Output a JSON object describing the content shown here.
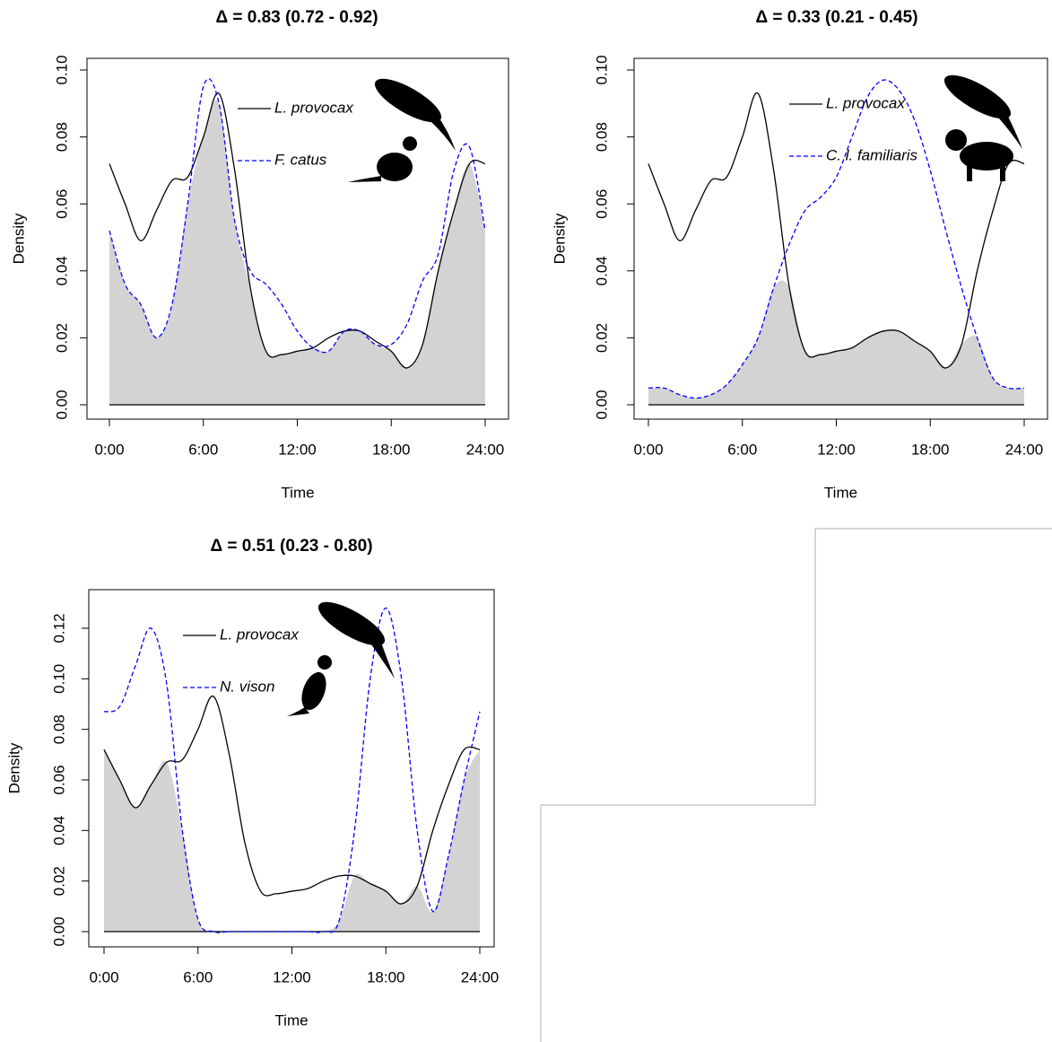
{
  "chart_data": [
    {
      "type": "line",
      "title": "Δ = 0.83 (0.72 - 0.92)",
      "x_label": "Time",
      "y_label": "Density",
      "x": [
        0,
        1,
        2,
        3,
        4,
        5,
        6,
        7,
        8,
        9,
        10,
        11,
        12,
        13,
        14,
        15,
        16,
        17,
        18,
        19,
        20,
        21,
        22,
        23,
        24
      ],
      "xlim": [
        0,
        24
      ],
      "xticks": [
        {
          "value": 0,
          "label": "0:00"
        },
        {
          "value": 6,
          "label": "6:00"
        },
        {
          "value": 12,
          "label": "12:00"
        },
        {
          "value": 18,
          "label": "18:00"
        },
        {
          "value": 24,
          "label": "24:00"
        }
      ],
      "ylim": [
        0,
        0.1
      ],
      "yticks": [
        {
          "value": 0,
          "label": "0.00"
        },
        0.02,
        0.04,
        0.06,
        0.08,
        {
          "value": 0.1,
          "label": "0.10"
        }
      ],
      "overlap_fill": "#d3d3d3",
      "series": [
        {
          "name": "L. provocax",
          "color": "#000000",
          "line_style": "solid",
          "values": [
            0.072,
            0.06,
            0.049,
            0.058,
            0.067,
            0.068,
            0.08,
            0.093,
            0.07,
            0.035,
            0.016,
            0.015,
            0.016,
            0.017,
            0.02,
            0.022,
            0.022,
            0.019,
            0.016,
            0.011,
            0.018,
            0.04,
            0.058,
            0.072,
            0.072
          ]
        },
        {
          "name": "F. catus",
          "color": "#0000ff",
          "line_style": "dashed",
          "values": [
            0.052,
            0.036,
            0.03,
            0.02,
            0.03,
            0.06,
            0.095,
            0.09,
            0.055,
            0.04,
            0.036,
            0.03,
            0.022,
            0.017,
            0.016,
            0.022,
            0.022,
            0.018,
            0.018,
            0.024,
            0.037,
            0.045,
            0.07,
            0.077,
            0.052
          ]
        }
      ]
    },
    {
      "type": "line",
      "title": "Δ = 0.33 (0.21 - 0.45)",
      "x_label": "Time",
      "y_label": "Density",
      "x": [
        0,
        1,
        2,
        3,
        4,
        5,
        6,
        7,
        8,
        9,
        10,
        11,
        12,
        13,
        14,
        15,
        16,
        17,
        18,
        19,
        20,
        21,
        22,
        23,
        24
      ],
      "xlim": [
        0,
        24
      ],
      "xticks": [
        {
          "value": 0,
          "label": "0:00"
        },
        {
          "value": 6,
          "label": "6:00"
        },
        {
          "value": 12,
          "label": "12:00"
        },
        {
          "value": 18,
          "label": "18:00"
        },
        {
          "value": 24,
          "label": "24:00"
        }
      ],
      "ylim": [
        0,
        0.1
      ],
      "yticks": [
        {
          "value": 0,
          "label": "0.00"
        },
        0.02,
        0.04,
        0.06,
        0.08,
        {
          "value": 0.1,
          "label": "0.10"
        }
      ],
      "overlap_fill": "#d3d3d3",
      "series": [
        {
          "name": "L. provocax",
          "color": "#000000",
          "line_style": "solid",
          "values": [
            0.072,
            0.06,
            0.049,
            0.058,
            0.067,
            0.068,
            0.08,
            0.093,
            0.07,
            0.035,
            0.016,
            0.015,
            0.016,
            0.017,
            0.02,
            0.022,
            0.022,
            0.019,
            0.016,
            0.011,
            0.018,
            0.04,
            0.058,
            0.072,
            0.072
          ]
        },
        {
          "name": "C. l. familiaris",
          "color": "#0000ff",
          "line_style": "dashed",
          "values": [
            0.005,
            0.005,
            0.003,
            0.002,
            0.003,
            0.006,
            0.012,
            0.02,
            0.035,
            0.048,
            0.058,
            0.062,
            0.068,
            0.08,
            0.092,
            0.097,
            0.094,
            0.085,
            0.07,
            0.052,
            0.035,
            0.02,
            0.008,
            0.005,
            0.005
          ]
        }
      ]
    },
    {
      "type": "line",
      "title": "Δ = 0.51 (0.23 - 0.80)",
      "x_label": "Time",
      "y_label": "Density",
      "x": [
        0,
        1,
        2,
        3,
        4,
        5,
        6,
        7,
        8,
        9,
        10,
        11,
        12,
        13,
        14,
        15,
        16,
        17,
        18,
        19,
        20,
        21,
        22,
        23,
        24
      ],
      "xlim": [
        0,
        24
      ],
      "xticks": [
        {
          "value": 0,
          "label": "0:00"
        },
        {
          "value": 6,
          "label": "6:00"
        },
        {
          "value": 12,
          "label": "12:00"
        },
        {
          "value": 18,
          "label": "18:00"
        },
        {
          "value": 24,
          "label": "24:00"
        }
      ],
      "ylim": [
        0,
        0.12
      ],
      "yticks": [
        {
          "value": 0,
          "label": "0.00"
        },
        0.02,
        0.04,
        0.06,
        0.08,
        {
          "value": 0.1,
          "label": "0.10"
        },
        0.12
      ],
      "overlap_fill": "#d3d3d3",
      "series": [
        {
          "name": "L. provocax",
          "color": "#000000",
          "line_style": "solid",
          "values": [
            0.072,
            0.06,
            0.049,
            0.058,
            0.067,
            0.068,
            0.08,
            0.093,
            0.07,
            0.035,
            0.016,
            0.015,
            0.016,
            0.017,
            0.02,
            0.022,
            0.022,
            0.019,
            0.016,
            0.011,
            0.018,
            0.04,
            0.058,
            0.072,
            0.072
          ]
        },
        {
          "name": "N. vison",
          "color": "#0000ff",
          "line_style": "dashed",
          "values": [
            0.087,
            0.089,
            0.105,
            0.12,
            0.098,
            0.04,
            0.005,
            0,
            0,
            0,
            0,
            0,
            0,
            0,
            0,
            0.004,
            0.04,
            0.1,
            0.128,
            0.1,
            0.04,
            0.008,
            0.03,
            0.06,
            0.087
          ]
        }
      ]
    }
  ]
}
